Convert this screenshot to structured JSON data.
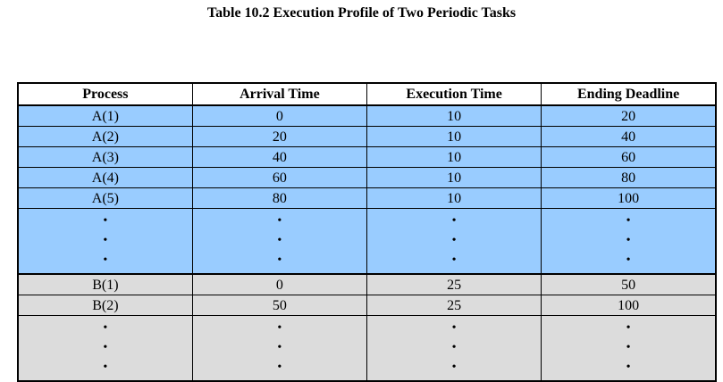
{
  "caption": "Table 10.2  Execution Profile of Two Periodic Tasks",
  "columns": [
    "Process",
    "Arrival Time",
    "Execution Time",
    "Ending Deadline"
  ],
  "task_a_rows": [
    {
      "process": "A(1)",
      "arrival": "0",
      "execution": "10",
      "deadline": "20"
    },
    {
      "process": "A(2)",
      "arrival": "20",
      "execution": "10",
      "deadline": "40"
    },
    {
      "process": "A(3)",
      "arrival": "40",
      "execution": "10",
      "deadline": "60"
    },
    {
      "process": "A(4)",
      "arrival": "60",
      "execution": "10",
      "deadline": "80"
    },
    {
      "process": "A(5)",
      "arrival": "80",
      "execution": "10",
      "deadline": "100"
    }
  ],
  "task_b_rows": [
    {
      "process": "B(1)",
      "arrival": "0",
      "execution": "25",
      "deadline": "50"
    },
    {
      "process": "B(2)",
      "arrival": "50",
      "execution": "25",
      "deadline": "100"
    }
  ],
  "continuation_glyph": "•",
  "colors": {
    "task_a_row": "#99ccff",
    "task_b_row": "#dcdcdc",
    "header": "#ffffff"
  }
}
